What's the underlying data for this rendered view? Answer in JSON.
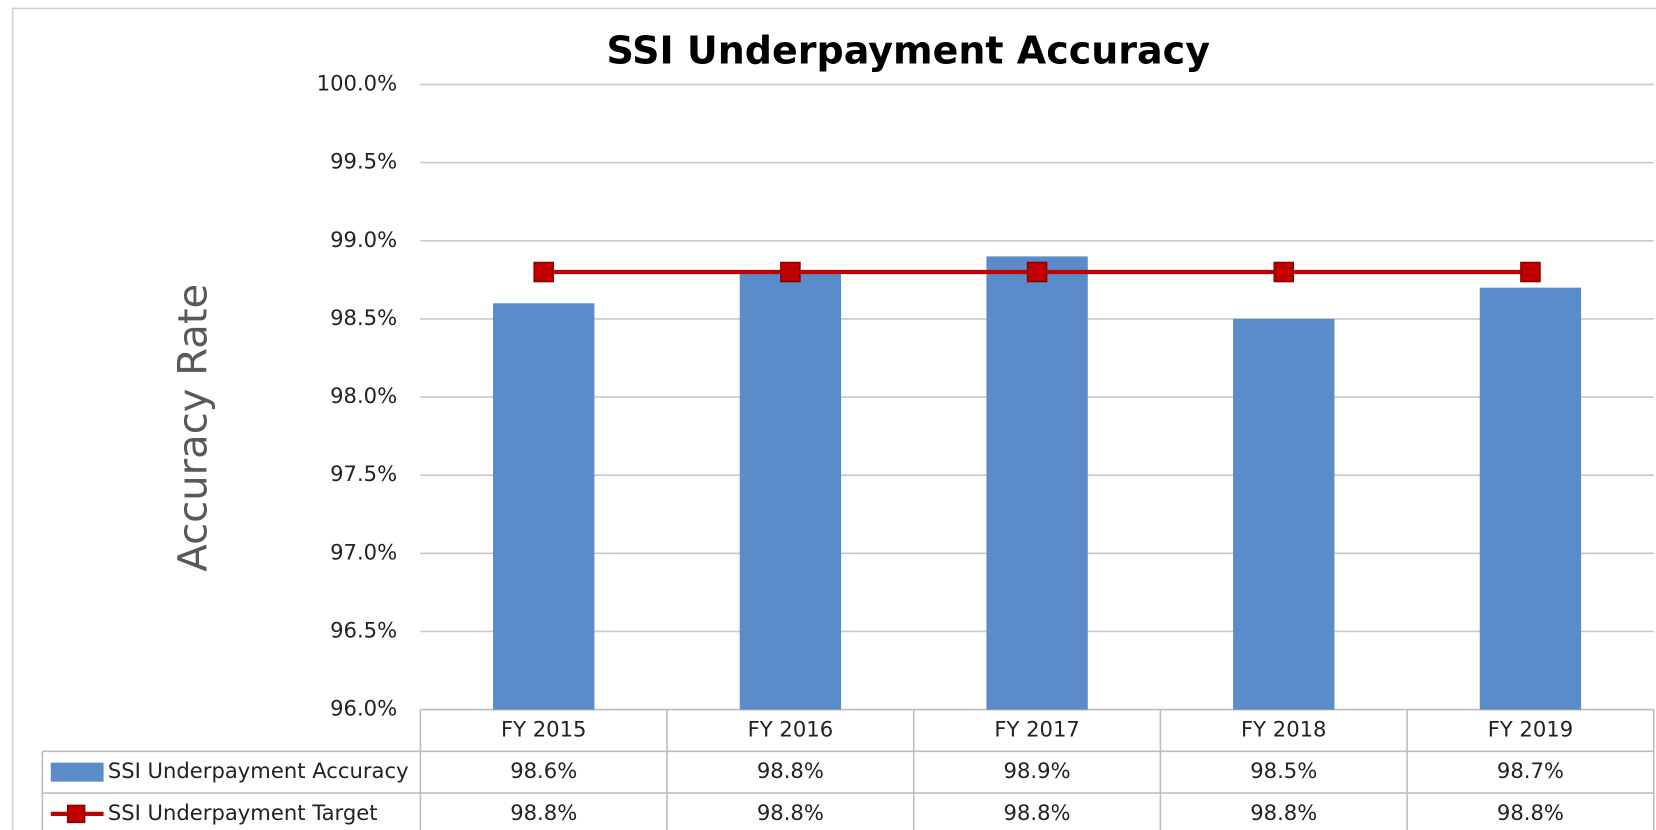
{
  "chart_data": {
    "type": "bar",
    "title": "SSI Underpayment Accuracy",
    "y_label": "Accuracy Rate",
    "categories": [
      "FY 2015",
      "FY 2016",
      "FY 2017",
      "FY 2018",
      "FY 2019"
    ],
    "series": [
      {
        "name": "SSI Underpayment Accuracy",
        "type": "bar",
        "color": "#5b8cc9",
        "values": [
          98.6,
          98.8,
          98.9,
          98.5,
          98.7
        ],
        "value_labels": [
          "98.6%",
          "98.8%",
          "98.9%",
          "98.5%",
          "98.7%"
        ]
      },
      {
        "name": "SSI Underpayment Target",
        "type": "line",
        "color": "#c00000",
        "values": [
          98.8,
          98.8,
          98.8,
          98.8,
          98.8
        ],
        "value_labels": [
          "98.8%",
          "98.8%",
          "98.8%",
          "98.8%",
          "98.8%"
        ]
      }
    ],
    "ylim": [
      96,
      100
    ],
    "yticks": [
      {
        "value": 96,
        "label": "96.0%"
      },
      {
        "value": 96.5,
        "label": "96.5%"
      },
      {
        "value": 97,
        "label": "97.0%"
      },
      {
        "value": 97.5,
        "label": "97.5%"
      },
      {
        "value": 98,
        "label": "98.0%"
      },
      {
        "value": 98.5,
        "label": "98.5%"
      },
      {
        "value": 99,
        "label": "99.0%"
      },
      {
        "value": 99.5,
        "label": "99.5%"
      },
      {
        "value": 100,
        "label": "100.0%"
      }
    ],
    "grid": true
  }
}
